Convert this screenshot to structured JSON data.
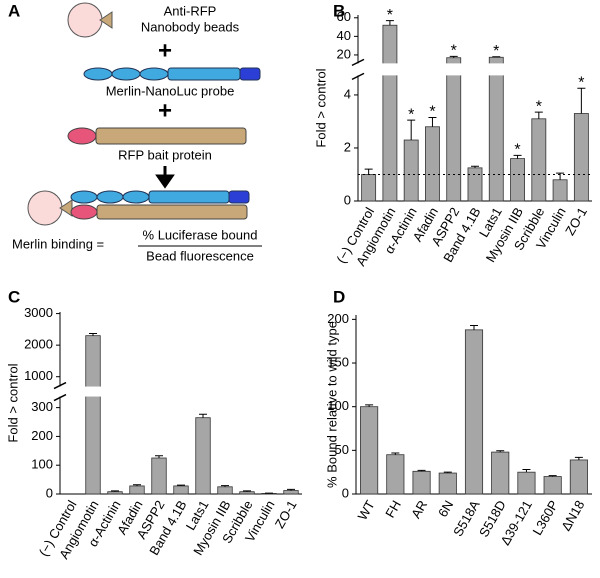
{
  "panels": [
    "A",
    "B",
    "C",
    "D"
  ],
  "diagram": {
    "bead_label_1": "Anti-RFP",
    "bead_label_2": "Nanobody beads",
    "plus_1": "+",
    "probe_label": "Merlin-NanoLuc probe",
    "plus_2": "+",
    "bait_label": "RFP bait protein",
    "equation_left": "Merlin binding =",
    "numerator": "% Luciferase bound",
    "denominator": "Bead fluorescence"
  },
  "chart_data": [
    {
      "type": "bar",
      "y_label": "Fold > control",
      "color": "#a6a6a6",
      "categories": [
        "(−) Control",
        "Angiomotin",
        "α-Actinin",
        "Afadin",
        "ASPP2",
        "Band 4.1B",
        "Lats1",
        "Myosin IIB",
        "Scribble",
        "Vinculin",
        "ZO-1"
      ],
      "values": [
        1.0,
        52,
        2.3,
        2.8,
        17,
        1.25,
        17.5,
        1.6,
        3.1,
        0.8,
        3.3
      ],
      "errors": [
        0.2,
        5,
        0.75,
        0.35,
        1.5,
        0.06,
        0.5,
        0.12,
        0.25,
        0.25,
        0.95
      ],
      "significance": [
        null,
        "*",
        "*",
        "*",
        "*",
        null,
        "*",
        "*",
        "*",
        null,
        "*"
      ],
      "ylim": [
        [
          0,
          4.7
        ],
        [
          12,
          63
        ]
      ],
      "yticks": [
        0,
        2,
        4,
        20,
        40,
        60
      ],
      "reference_line": 1
    },
    {
      "type": "bar",
      "y_label": "Fold > control",
      "color": "#a6a6a6",
      "categories": [
        "(−) Control",
        "Angiomotin",
        "α-Actinin",
        "Afadin",
        "ASPP2",
        "Band 4.1B",
        "Lats1",
        "Myosin IIB",
        "Scribble",
        "Vinculin",
        "ZO-1"
      ],
      "values": [
        0,
        2300,
        8,
        28,
        125,
        28,
        265,
        25,
        8,
        2,
        12
      ],
      "errors": [
        0,
        70,
        3,
        4,
        8,
        3,
        12,
        4,
        3,
        1,
        4
      ],
      "ylim": [
        [
          0,
          335
        ],
        [
          720,
          3050
        ]
      ],
      "yticks": [
        0,
        100,
        200,
        300,
        1000,
        2000,
        3000
      ]
    },
    {
      "type": "bar",
      "y_label": "% Bound relative to wild type",
      "color": "#a6a6a6",
      "categories": [
        "WT",
        "FH",
        "AR",
        "6N",
        "S518A",
        "S518D",
        "Δ39-121",
        "L360P",
        "ΔN18"
      ],
      "values": [
        100,
        45,
        26,
        24,
        188,
        48,
        25,
        20,
        39
      ],
      "errors": [
        2,
        2,
        1,
        1,
        5,
        1.5,
        3,
        1,
        3
      ],
      "ylim": [
        [
          0,
          205
        ]
      ],
      "yticks": [
        0,
        50,
        100,
        150,
        200
      ]
    }
  ]
}
